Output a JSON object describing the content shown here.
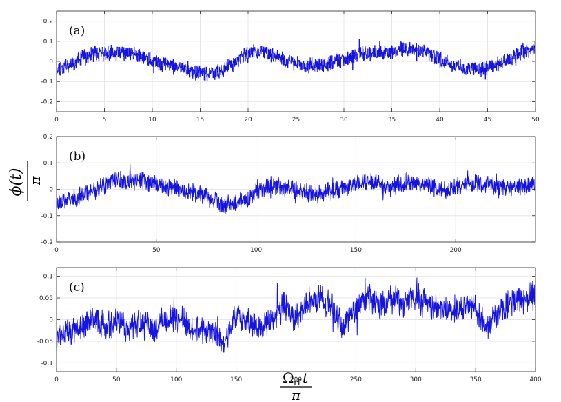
{
  "colors": {
    "line": "#1414e6",
    "axis": "#262626",
    "grid": "#e6e6e6",
    "background": "#ffffff"
  },
  "chart_data": [
    {
      "type": "line",
      "panel_label": "(a)",
      "xlim": [
        0,
        50
      ],
      "ylim": [
        -0.25,
        0.25
      ],
      "xticks": [
        0,
        5,
        10,
        15,
        20,
        25,
        30,
        35,
        40,
        45,
        50
      ],
      "yticks": [
        -0.2,
        -0.1,
        0,
        0.1,
        0.2
      ],
      "ytick_labels": [
        "-0.2",
        "-0.1",
        "0",
        "0.1",
        "0.2"
      ],
      "grid": true,
      "style": "step",
      "series": [
        {
          "x": [
            0,
            2,
            4,
            6,
            8,
            10,
            12,
            14,
            15,
            17,
            19,
            20.5,
            22,
            24,
            26,
            28,
            30,
            32,
            34,
            36,
            37.5,
            39,
            41,
            43,
            45,
            47,
            48.5,
            49.5,
            50
          ],
          "y": [
            -0.04,
            0.0,
            0.04,
            0.04,
            0.04,
            0.0,
            -0.02,
            -0.05,
            -0.06,
            -0.05,
            0.01,
            0.05,
            0.04,
            0.0,
            -0.02,
            -0.02,
            0.01,
            0.04,
            0.04,
            0.06,
            0.06,
            0.03,
            -0.01,
            -0.04,
            -0.03,
            0.0,
            0.05,
            0.06,
            0.07
          ]
        }
      ]
    },
    {
      "type": "line",
      "panel_label": "(b)",
      "xlim": [
        0,
        240
      ],
      "ylim": [
        -0.2,
        0.2
      ],
      "xticks": [
        0,
        50,
        100,
        150,
        200
      ],
      "yticks": [
        -0.2,
        -0.1,
        0,
        0.1,
        0.2
      ],
      "ytick_labels": [
        "-0.2",
        "-0.1",
        "0",
        "0.1",
        "0.2"
      ],
      "grid": true,
      "series": [
        {
          "x": [
            0,
            10,
            20,
            30,
            35,
            45,
            55,
            65,
            75,
            85,
            95,
            100,
            110,
            120,
            130,
            140,
            150,
            155,
            160,
            165,
            175,
            185,
            195,
            205,
            215,
            225,
            235,
            240
          ],
          "y": [
            -0.05,
            -0.03,
            0.0,
            0.04,
            0.03,
            0.03,
            0.01,
            0.0,
            -0.03,
            -0.06,
            -0.04,
            0.0,
            0.01,
            0.0,
            -0.02,
            0.0,
            0.02,
            0.03,
            0.02,
            0.0,
            0.03,
            0.02,
            -0.01,
            0.02,
            0.02,
            0.01,
            0.01,
            0.02
          ]
        }
      ]
    },
    {
      "type": "line",
      "panel_label": "(c)",
      "xlim": [
        0,
        400
      ],
      "ylim": [
        -0.12,
        0.12
      ],
      "xticks": [
        0,
        50,
        100,
        150,
        200,
        250,
        300,
        350,
        400
      ],
      "yticks": [
        -0.1,
        -0.05,
        0,
        0.05,
        0.1
      ],
      "ytick_labels": [
        "-0.1",
        "-0.05",
        "0",
        "0.05",
        "0.1"
      ],
      "grid": true,
      "series": [
        {
          "x": [
            0,
            10,
            20,
            30,
            40,
            50,
            60,
            70,
            80,
            90,
            100,
            110,
            120,
            130,
            140,
            150,
            160,
            170,
            180,
            190,
            200,
            210,
            220,
            230,
            240,
            250,
            260,
            270,
            280,
            290,
            300,
            310,
            320,
            330,
            340,
            350,
            360,
            370,
            380,
            390,
            400
          ],
          "y": [
            -0.04,
            -0.03,
            -0.02,
            0.0,
            -0.01,
            -0.01,
            -0.02,
            -0.01,
            -0.02,
            0.0,
            0.0,
            -0.01,
            -0.02,
            -0.03,
            -0.06,
            0.01,
            0.0,
            -0.02,
            0.0,
            0.03,
            0.0,
            0.04,
            0.05,
            0.03,
            -0.02,
            0.03,
            0.05,
            0.03,
            0.05,
            0.04,
            0.05,
            0.04,
            0.03,
            0.02,
            0.03,
            0.02,
            -0.02,
            0.02,
            0.04,
            0.04,
            0.06
          ]
        }
      ]
    }
  ],
  "axes_text": {
    "ylabel_top": "ϕ(t)",
    "ylabel_bottom": "π",
    "xlabel_omega": "Ω",
    "xlabel_sub": "rf",
    "xlabel_t": "t",
    "xlabel_bottom": "π"
  }
}
